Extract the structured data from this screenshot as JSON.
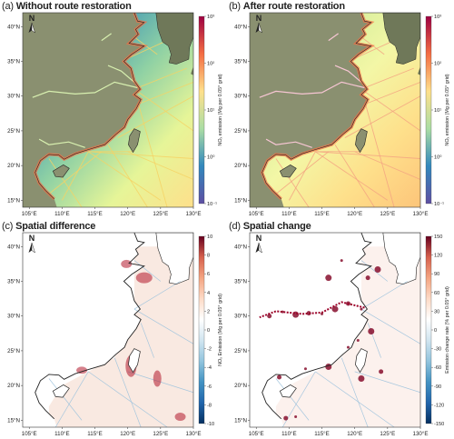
{
  "panels": [
    {
      "id": "a",
      "letter": "(a)",
      "title": "Without route restoration",
      "style": "emission_a",
      "colorbar": {
        "label": "NOₓ emission (Mg per 0.05° grid)",
        "ticks": [
          "10³",
          "10²",
          "10¹",
          "10⁰",
          "10⁻¹"
        ]
      }
    },
    {
      "id": "b",
      "letter": "(b)",
      "title": "After route restoration",
      "style": "emission_b",
      "colorbar": {
        "label": "NOₓ emission (Mg per 0.05° grid)",
        "ticks": [
          "10³",
          "10²",
          "10¹",
          "10⁰",
          "10⁻¹"
        ]
      }
    },
    {
      "id": "c",
      "letter": "(c)",
      "title": "Spatial difference",
      "style": "difference",
      "colorbar": {
        "label": "NOₓ Emission (Mg per 0.05° grid)",
        "ticks": [
          "10",
          "8",
          "6",
          "4",
          "2",
          "0",
          "-2",
          "-4",
          "-6",
          "-8",
          "-10"
        ]
      }
    },
    {
      "id": "d",
      "letter": "(d)",
      "title": "Spatial change",
      "style": "change",
      "colorbar": {
        "label": "Emission change rate (% per 0.05° grid)",
        "ticks": [
          "150",
          "120",
          "90",
          "60",
          "30",
          "0",
          "-30",
          "-60",
          "-90",
          "-120",
          "-150"
        ]
      }
    }
  ],
  "lat_ticks": [
    "40°N",
    "35°N",
    "30°N",
    "25°N",
    "20°N",
    "15°N"
  ],
  "lon_ticks": [
    "105°E",
    "110°E",
    "115°E",
    "120°E",
    "125°E",
    "130°E"
  ],
  "north_arrow_label": "N",
  "colors": {
    "land": "#8a9070",
    "land_dark": "#6f7859",
    "coast": "#222222",
    "sea_low": "#5e4fa2",
    "sea_mid": "#66c2a5",
    "sea_hi": "#fee08b",
    "route_hi": "#d73027",
    "diff_pos": "#b2182b",
    "diff_neg": "#2166ac",
    "diff_bg": "#f7e4da"
  },
  "map_extent": {
    "lon": [
      104,
      130
    ],
    "lat": [
      14,
      42
    ]
  }
}
